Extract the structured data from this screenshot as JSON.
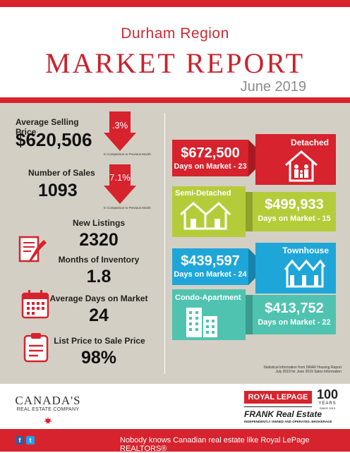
{
  "header": {
    "region": "Durham Region",
    "title": "MARKET REPORT",
    "month": "June 2019"
  },
  "stats": {
    "avg_price_label": "Average Selling Price",
    "avg_price_value": "$620,506",
    "avg_price_change": ".3%",
    "avg_price_note": "In Comparison to Previous Month",
    "sales_label": "Number of Sales",
    "sales_value": "1093",
    "sales_change": "7.1%",
    "sales_note": "In Comparison to Previous Month",
    "listings_label": "New Listings",
    "listings_value": "2320",
    "inventory_label": "Months of Inventory",
    "inventory_value": "1.8",
    "dom_label": "Average Days on Market",
    "dom_value": "24",
    "ratio_label": "List Price to Sale Price",
    "ratio_value": "98%"
  },
  "types": {
    "detached": {
      "name": "Detached",
      "price": "$672,500",
      "dom": "Days on Market - 23",
      "color": "#d6232d"
    },
    "semi": {
      "name": "Semi-Detached",
      "price": "$499,933",
      "dom": "Days on Market - 15",
      "color": "#b5cc3a"
    },
    "townhouse": {
      "name": "Townhouse",
      "price": "$439,597",
      "dom": "Days on Market - 24",
      "color": "#1fa6d8"
    },
    "condo": {
      "name": "Condo-Apartment",
      "price": "$413,752",
      "dom": "Days on Market - 22",
      "color": "#4fc3b0"
    }
  },
  "source": {
    "line1": "Statistical information from DRAR Housing Report",
    "line2": "July 2019 for June 2019 Sales Information"
  },
  "brand": {
    "canadas": "CANADA'S",
    "company": "REAL ESTATE COMPANY",
    "royal": "ROYAL LEPAGE",
    "years_num": "100",
    "years_word": "YEARS",
    "since": "SINCE 1913",
    "frank": "FRANK Real Estate",
    "brokerage": "INDEPENDENTLY OWNED AND OPERATED, BROKERAGE"
  },
  "footer": {
    "tagline": "Nobody knows Canadian real estate like Royal LePage REALTORS®"
  }
}
